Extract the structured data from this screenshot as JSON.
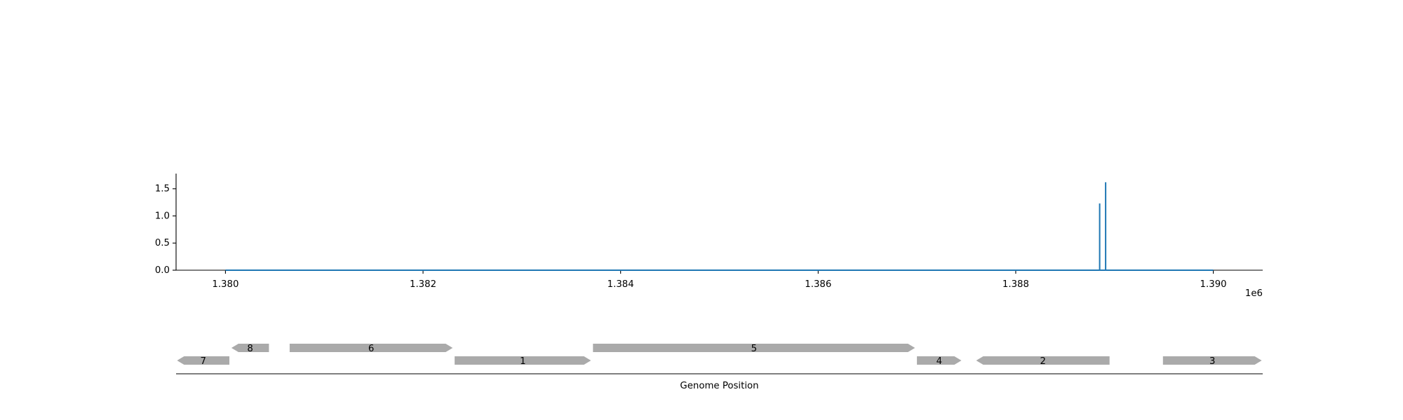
{
  "chart_data": [
    {
      "type": "line",
      "x_ticks": [
        1380000,
        1382000,
        1384000,
        1386000,
        1388000,
        1390000
      ],
      "x_tick_labels": [
        "1.380",
        "1.382",
        "1.384",
        "1.386",
        "1.388",
        "1.390"
      ],
      "x_offset_label": "1e6",
      "y_ticks": [
        0.0,
        0.5,
        1.0,
        1.5
      ],
      "y_tick_labels": [
        "0.0",
        "0.5",
        "1.0",
        "1.5"
      ],
      "xlim": [
        1379500,
        1390500
      ],
      "ylim": [
        0,
        1.78
      ],
      "grid": false,
      "line_color": "#1f77b4",
      "series": [
        {
          "x": [
            1380000,
            1388850,
            1388850,
            1388850,
            1388910,
            1388910,
            1388910,
            1390000
          ],
          "y": [
            0,
            0,
            1.23,
            0,
            0,
            1.62,
            0,
            0
          ]
        }
      ]
    },
    {
      "type": "gene-track",
      "xlabel": "Genome Position",
      "xlim": [
        1379500,
        1390500
      ],
      "gene_color": "#aaaaaa",
      "genes": [
        {
          "label": "7",
          "start": 1379510,
          "end": 1380040,
          "strand": -1,
          "level": 0
        },
        {
          "label": "8",
          "start": 1380060,
          "end": 1380440,
          "strand": -1,
          "level": 1
        },
        {
          "label": "6",
          "start": 1380650,
          "end": 1382300,
          "strand": 1,
          "level": 1
        },
        {
          "label": "1",
          "start": 1382320,
          "end": 1383700,
          "strand": 1,
          "level": 0
        },
        {
          "label": "5",
          "start": 1383720,
          "end": 1386980,
          "strand": 1,
          "level": 1
        },
        {
          "label": "4",
          "start": 1387000,
          "end": 1387450,
          "strand": 1,
          "level": 0
        },
        {
          "label": "2",
          "start": 1387600,
          "end": 1388950,
          "strand": -1,
          "level": 0
        },
        {
          "label": "3",
          "start": 1389490,
          "end": 1390490,
          "strand": 1,
          "level": 0
        }
      ]
    }
  ]
}
